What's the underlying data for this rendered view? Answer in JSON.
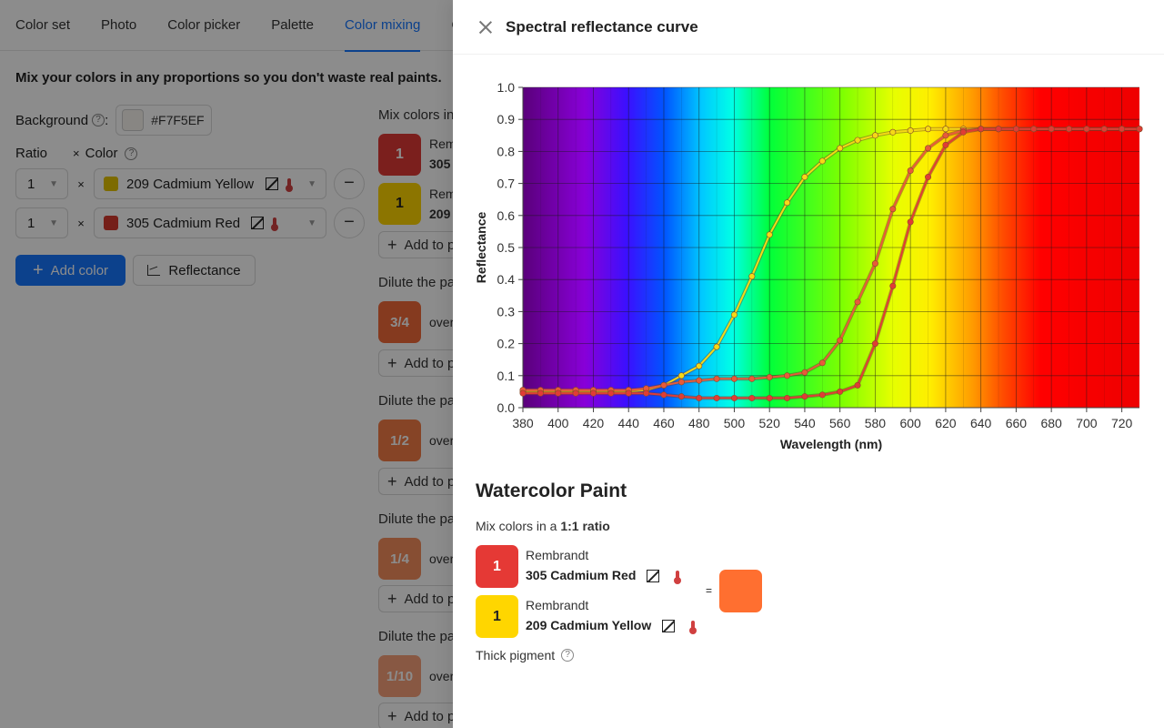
{
  "tabs": [
    "Color set",
    "Photo",
    "Color picker",
    "Palette",
    "Color mixing",
    "C"
  ],
  "active_tab": "Color mixing",
  "intro": "Mix your colors in any proportions so you don't waste real paints.",
  "background": {
    "label": "Background",
    "value": "#F7F5EF"
  },
  "ratio_header": {
    "ratio": "Ratio",
    "times": "×",
    "color": "Color"
  },
  "mix_rows": [
    {
      "ratio": "1",
      "color_name": "209 Cadmium Yellow",
      "color": "#E4C300"
    },
    {
      "ratio": "1",
      "color_name": "305 Cadmium Red",
      "color": "#D63A2F"
    }
  ],
  "buttons": {
    "add_color": "Add color",
    "reflectance": "Reflectance"
  },
  "column2": {
    "mix_heading": "Mix colors in",
    "chip1": {
      "label": "1",
      "line1": "Rem",
      "line2": "305",
      "color": "#E03A35"
    },
    "chip2": {
      "label": "1",
      "line1": "Rem",
      "line2": "209",
      "color": "#FFD600"
    },
    "add_to": "Add to p",
    "dilute": "Dilute the pa",
    "dilute_chips": [
      {
        "label": "3/4",
        "side": "over",
        "color": "#F26A3A"
      },
      {
        "label": "1/2",
        "side": "over",
        "color": "#F47C46"
      },
      {
        "label": "1/4",
        "side": "over",
        "color": "#F68F5E"
      },
      {
        "label": "1/10",
        "side": "over",
        "color": "#F7A07A"
      }
    ]
  },
  "drawer": {
    "title": "Spectral reflectance curve",
    "section_title": "Watercolor Paint",
    "ratio_prefix": "Mix colors in a ",
    "ratio_value": "1:1 ratio",
    "paints": [
      {
        "chip": "1",
        "brand": "Rembrandt",
        "name": "305 Cadmium Red",
        "color": "#E53935",
        "text_color": "#ffffff"
      },
      {
        "chip": "1",
        "brand": "Rembrandt",
        "name": "209 Cadmium Yellow",
        "color": "#FFD600",
        "text_color": "#222222"
      }
    ],
    "equals": "=",
    "result_color": "#FF6F30",
    "thick_pigment": "Thick pigment"
  },
  "chart_data": {
    "type": "line",
    "xlabel": "Wavelength (nm)",
    "ylabel": "Reflectance",
    "xlim": [
      380,
      730
    ],
    "ylim": [
      0,
      1
    ],
    "xticks": [
      380,
      400,
      420,
      440,
      460,
      480,
      500,
      520,
      540,
      560,
      580,
      600,
      620,
      640,
      660,
      680,
      700,
      720
    ],
    "yticks": [
      0.0,
      0.1,
      0.2,
      0.3,
      0.4,
      0.5,
      0.6,
      0.7,
      0.8,
      0.9,
      1.0
    ],
    "grid": true,
    "background": "visible spectrum gradient",
    "series": [
      {
        "color": "#F5D916",
        "x": [
          380,
          390,
          400,
          410,
          420,
          430,
          440,
          450,
          460,
          470,
          480,
          490,
          500,
          510,
          520,
          530,
          540,
          550,
          560,
          570,
          580,
          590,
          600,
          610,
          620,
          630,
          640,
          650,
          660,
          670,
          680,
          690,
          700,
          710,
          720,
          730
        ],
        "values": [
          0.05,
          0.05,
          0.05,
          0.05,
          0.05,
          0.05,
          0.05,
          0.055,
          0.07,
          0.1,
          0.13,
          0.19,
          0.29,
          0.41,
          0.54,
          0.64,
          0.72,
          0.77,
          0.81,
          0.835,
          0.85,
          0.86,
          0.865,
          0.87,
          0.87,
          0.87,
          0.87,
          0.87,
          0.87,
          0.87,
          0.87,
          0.87,
          0.87,
          0.87,
          0.87,
          0.87
        ]
      },
      {
        "color": "#E85A3A",
        "x": [
          380,
          390,
          400,
          410,
          420,
          430,
          440,
          450,
          460,
          470,
          480,
          490,
          500,
          510,
          520,
          530,
          540,
          550,
          560,
          570,
          580,
          590,
          600,
          610,
          620,
          630,
          640,
          650,
          660,
          670,
          680,
          690,
          700,
          710,
          720,
          730
        ],
        "values": [
          0.055,
          0.055,
          0.055,
          0.055,
          0.055,
          0.055,
          0.055,
          0.06,
          0.07,
          0.08,
          0.085,
          0.09,
          0.09,
          0.09,
          0.095,
          0.1,
          0.11,
          0.14,
          0.21,
          0.33,
          0.45,
          0.62,
          0.74,
          0.81,
          0.85,
          0.865,
          0.87,
          0.87,
          0.87,
          0.87,
          0.87,
          0.87,
          0.87,
          0.87,
          0.87,
          0.87
        ]
      },
      {
        "color": "#E03C35",
        "x": [
          380,
          390,
          400,
          410,
          420,
          430,
          440,
          450,
          460,
          470,
          480,
          490,
          500,
          510,
          520,
          530,
          540,
          550,
          560,
          570,
          580,
          590,
          600,
          610,
          620,
          630,
          640,
          650,
          660,
          670,
          680,
          690,
          700,
          710,
          720,
          730
        ],
        "values": [
          0.045,
          0.045,
          0.045,
          0.045,
          0.045,
          0.045,
          0.045,
          0.045,
          0.04,
          0.035,
          0.03,
          0.03,
          0.03,
          0.03,
          0.03,
          0.03,
          0.035,
          0.04,
          0.05,
          0.07,
          0.2,
          0.38,
          0.58,
          0.72,
          0.82,
          0.86,
          0.87,
          0.87,
          0.87,
          0.87,
          0.87,
          0.87,
          0.87,
          0.87,
          0.87,
          0.87
        ]
      }
    ]
  }
}
